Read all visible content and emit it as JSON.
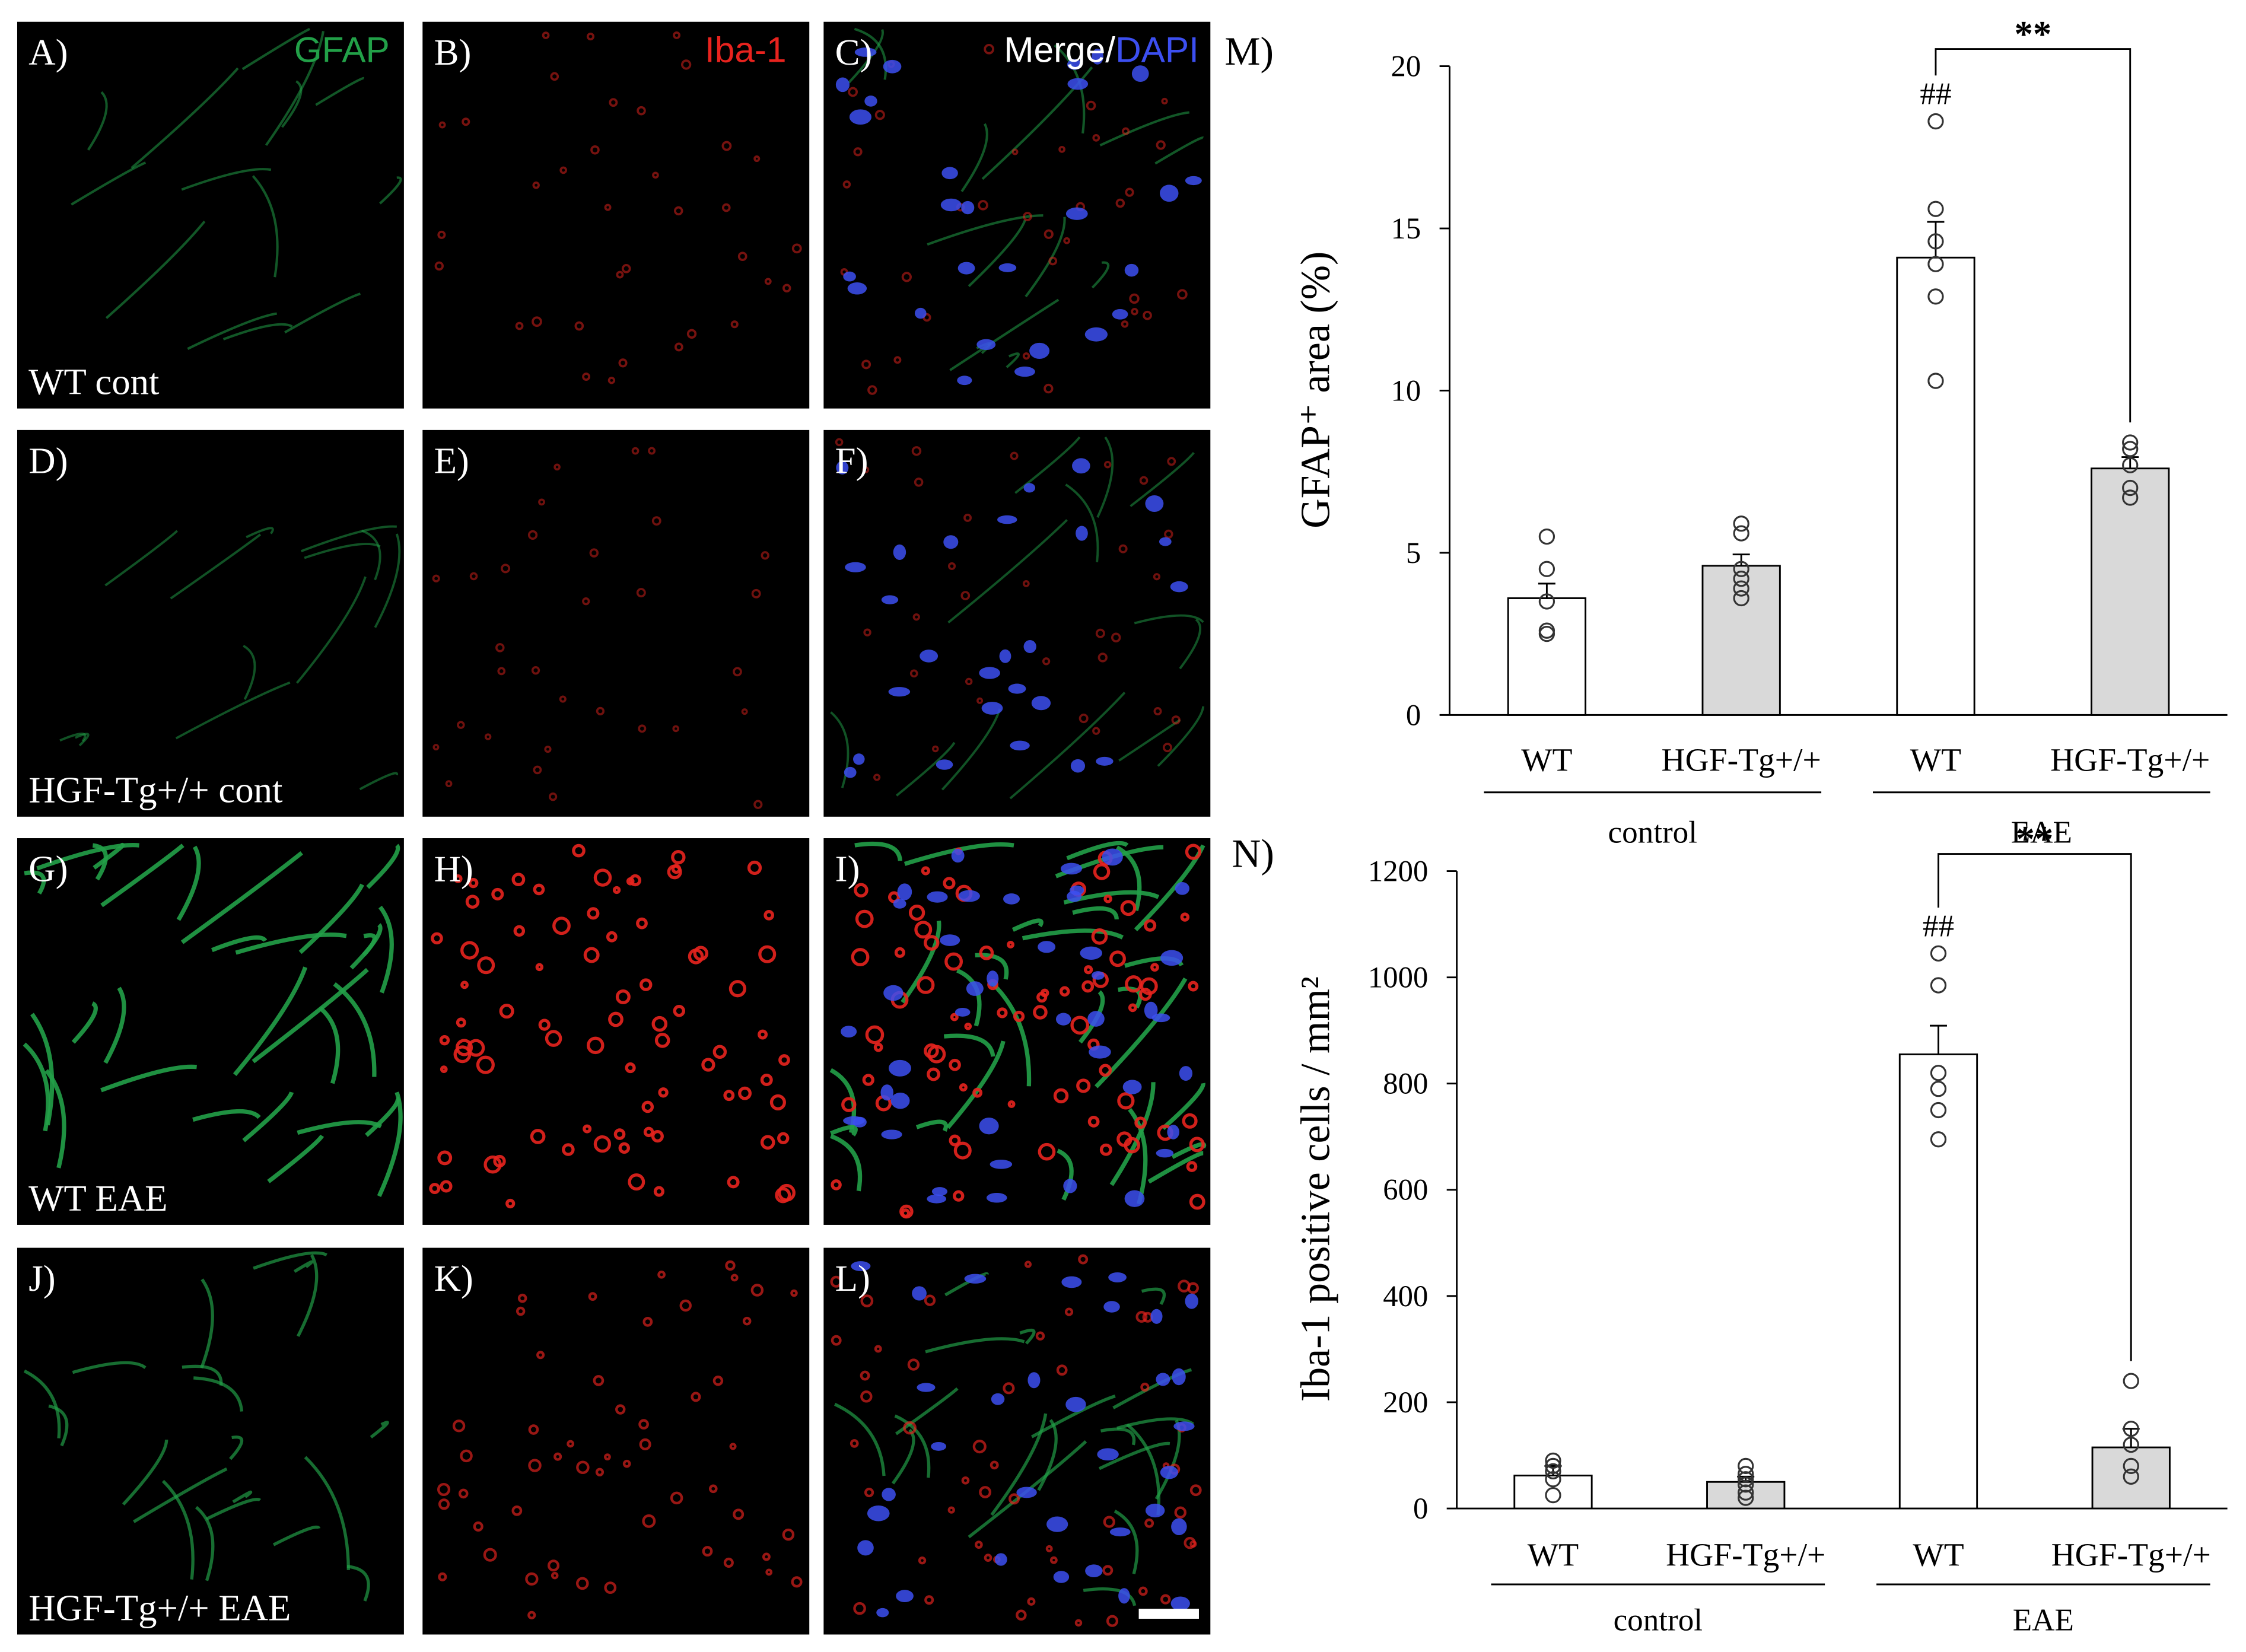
{
  "micrographs": {
    "rows": [
      {
        "label": "WT cont",
        "panels": [
          "A)",
          "B)",
          "C)"
        ]
      },
      {
        "label": "HGF-Tg+/+ cont",
        "panels": [
          "D)",
          "E)",
          "F)"
        ]
      },
      {
        "label": "WT EAE",
        "panels": [
          "G)",
          "H)",
          "I)"
        ]
      },
      {
        "label": "HGF-Tg+/+ EAE",
        "panels": [
          "J)",
          "K)",
          "L)"
        ]
      }
    ],
    "channels": [
      {
        "name": "GFAP",
        "color": "#22a048"
      },
      {
        "name": "Iba-1",
        "color": "#e8231e"
      },
      {
        "name": "Merge/",
        "color": "#ffffff"
      },
      {
        "name": "DAPI",
        "color": "#3c4ff0"
      }
    ]
  },
  "chart_data": [
    {
      "type": "bar",
      "panel_label": "M)",
      "y_label": "GFAP⁺ area (%)",
      "categories": [
        "WT",
        "HGF-Tg+/+",
        "WT",
        "HGF-Tg+/+"
      ],
      "groups": [
        "control",
        "EAE"
      ],
      "values": [
        3.6,
        4.6,
        14.1,
        7.6
      ],
      "errors": [
        0.45,
        0.35,
        1.1,
        0.35
      ],
      "colors": [
        "#ffffff",
        "#d9d9d9",
        "#ffffff",
        "#d9d9d9"
      ],
      "points": [
        [
          5.5,
          4.5,
          3.5,
          2.6,
          2.5
        ],
        [
          5.9,
          5.6,
          4.5,
          4.2,
          3.9,
          3.6
        ],
        [
          18.3,
          15.6,
          14.6,
          13.9,
          12.9,
          10.3
        ],
        [
          8.4,
          8.2,
          7.7,
          7.0,
          6.7
        ]
      ],
      "marker": "##",
      "significance": "**",
      "ylim": [
        0,
        20
      ],
      "yticks": [
        0,
        5,
        10,
        15,
        20
      ]
    },
    {
      "type": "bar",
      "panel_label": "N)",
      "y_label": "Iba-1 positive cells / mm²",
      "categories": [
        "WT",
        "HGF-Tg+/+",
        "WT",
        "HGF-Tg+/+"
      ],
      "groups": [
        "control",
        "EAE"
      ],
      "values": [
        62,
        50,
        855,
        115
      ],
      "errors": [
        18,
        10,
        54,
        35
      ],
      "colors": [
        "#ffffff",
        "#d9d9d9",
        "#ffffff",
        "#d9d9d9"
      ],
      "points": [
        [
          90,
          80,
          70,
          55,
          25
        ],
        [
          80,
          65,
          55,
          45,
          30,
          20
        ],
        [
          1045,
          985,
          820,
          790,
          750,
          695
        ],
        [
          240,
          150,
          120,
          80,
          60
        ]
      ],
      "marker": "##",
      "significance": "**",
      "ylim": [
        0,
        1200
      ],
      "yticks": [
        0,
        200,
        400,
        600,
        800,
        1000,
        1200
      ]
    }
  ]
}
